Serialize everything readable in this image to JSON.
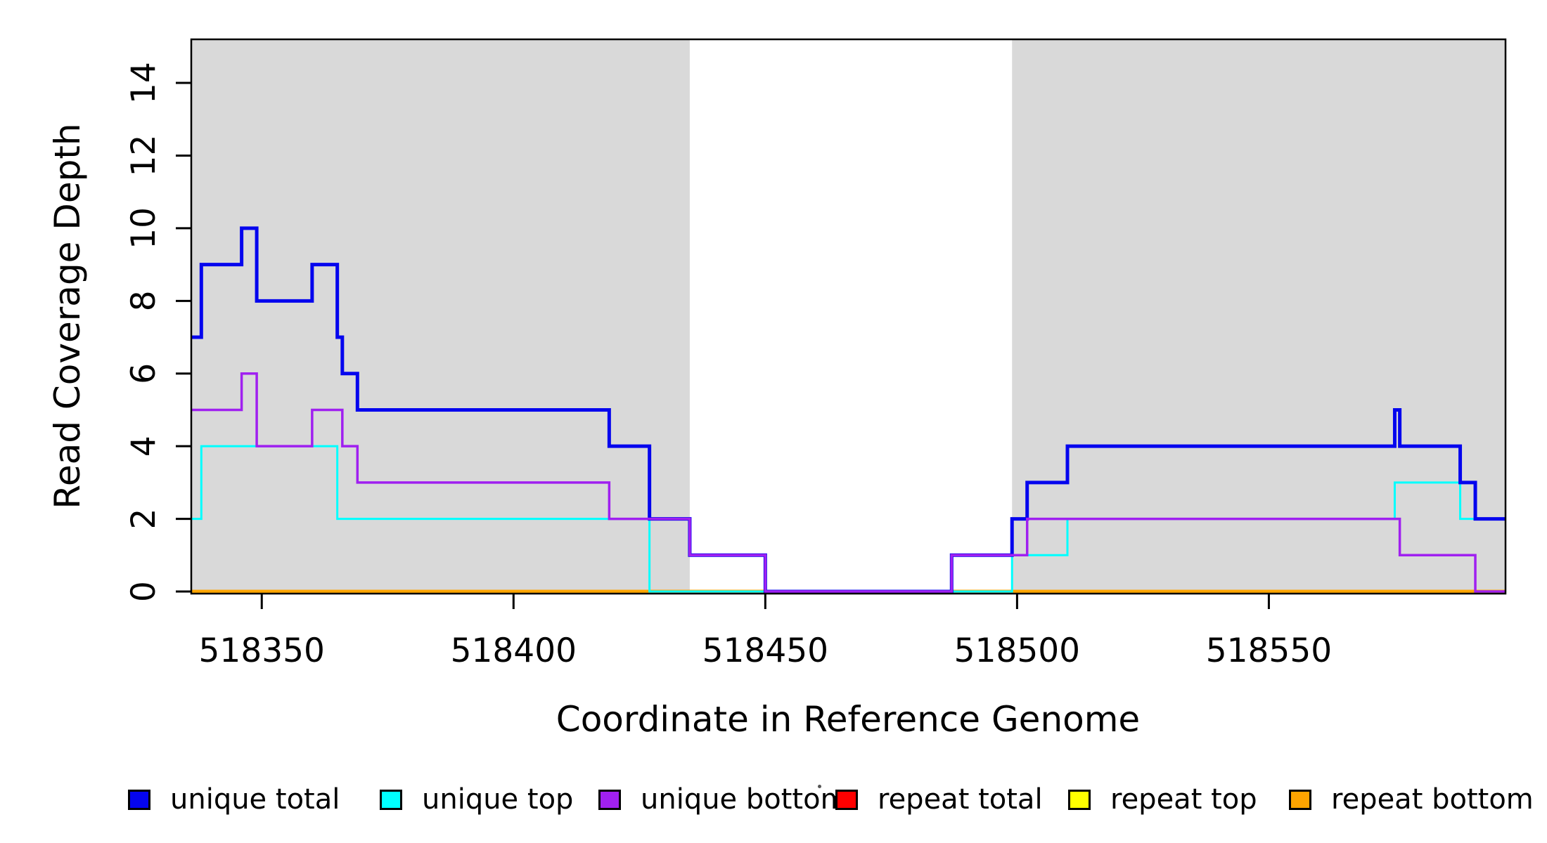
{
  "chart_data": {
    "type": "line",
    "subtype": "step-coverage",
    "title": "",
    "xlabel": "Coordinate in Reference Genome",
    "ylabel": "Read Coverage Depth",
    "xlim": [
      518336,
      518597
    ],
    "ylim": [
      0,
      15.2
    ],
    "x_ticks": [
      518350,
      518400,
      518450,
      518500,
      518550
    ],
    "y_ticks": [
      0,
      2,
      4,
      6,
      8,
      10,
      12,
      14
    ],
    "grid": false,
    "plot_bg": "#ffffff",
    "shaded_region_color": "#d9d9d9",
    "shaded_regions": [
      {
        "x0": 518336,
        "x1": 518435
      },
      {
        "x0": 518499,
        "x1": 518597
      }
    ],
    "series": [
      {
        "name": "repeat total",
        "color": "#ff0000",
        "width": 3,
        "points": [
          [
            518336,
            0
          ]
        ]
      },
      {
        "name": "repeat top",
        "color": "#ffff00",
        "width": 3,
        "points": [
          [
            518336,
            0
          ]
        ]
      },
      {
        "name": "repeat bottom",
        "color": "#ffa500",
        "width": 5,
        "points": [
          [
            518336,
            0
          ]
        ]
      },
      {
        "name": "unique top",
        "color": "#00ffff",
        "width": 3,
        "points": [
          [
            518336,
            2
          ],
          [
            518338,
            4
          ],
          [
            518365,
            2
          ],
          [
            518427,
            0
          ],
          [
            518499,
            1
          ],
          [
            518510,
            2
          ],
          [
            518575,
            3
          ],
          [
            518588,
            2
          ]
        ]
      },
      {
        "name": "unique total",
        "color": "#0505ee",
        "width": 5,
        "points": [
          [
            518336,
            7
          ],
          [
            518338,
            9
          ],
          [
            518346,
            10
          ],
          [
            518349,
            8
          ],
          [
            518360,
            9
          ],
          [
            518365,
            7
          ],
          [
            518366,
            6
          ],
          [
            518369,
            5
          ],
          [
            518419,
            4
          ],
          [
            518427,
            2
          ],
          [
            518435,
            1
          ],
          [
            518450,
            0
          ],
          [
            518487,
            1
          ],
          [
            518499,
            2
          ],
          [
            518502,
            3
          ],
          [
            518510,
            4
          ],
          [
            518575,
            5
          ],
          [
            518576,
            4
          ],
          [
            518588,
            3
          ],
          [
            518591,
            2
          ]
        ]
      },
      {
        "name": "unique bottom",
        "color": "#a020f0",
        "width": 3.5,
        "points": [
          [
            518336,
            5
          ],
          [
            518346,
            6
          ],
          [
            518349,
            4
          ],
          [
            518360,
            5
          ],
          [
            518366,
            4
          ],
          [
            518369,
            3
          ],
          [
            518419,
            2
          ],
          [
            518435,
            1
          ],
          [
            518450,
            0
          ],
          [
            518487,
            1
          ],
          [
            518502,
            2
          ],
          [
            518576,
            1
          ],
          [
            518591,
            0
          ]
        ]
      }
    ],
    "legend": {
      "position": "bottom",
      "items": [
        {
          "label": "unique total",
          "color": "#0505ee"
        },
        {
          "label": "unique top",
          "color": "#00ffff"
        },
        {
          "label": "unique bottom",
          "color": "#a020f0"
        },
        {
          "label": "repeat total",
          "color": "#ff0000"
        },
        {
          "label": "repeat top",
          "color": "#ffff00"
        },
        {
          "label": "repeat bottom",
          "color": "#ffa500"
        }
      ]
    }
  }
}
